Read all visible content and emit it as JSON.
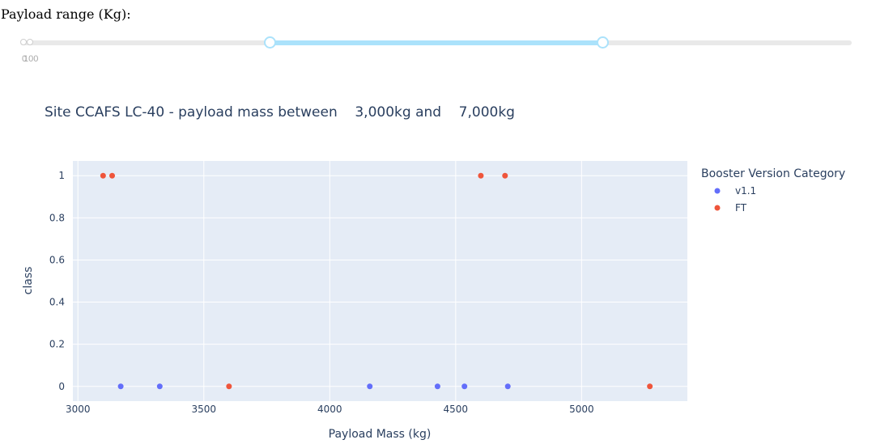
{
  "slider": {
    "label": "Payload range (Kg):",
    "min": 0,
    "max": 10000,
    "value": [
      3000,
      7000
    ],
    "marks": [
      "0",
      "100"
    ]
  },
  "colors": {
    "v1.1": "#636efa",
    "FT": "#ef553b",
    "plot_bg": "#e5ecf6",
    "grid": "#ffffff",
    "slider_fill": "#abe2fb"
  },
  "chart_data": {
    "type": "scatter",
    "title": "Site CCAFS LC-40 - payload mass between    3,000kg and    7,000kg",
    "xlabel": "Payload Mass (kg)",
    "ylabel": "class",
    "xlim": [
      2980,
      5420
    ],
    "ylim": [
      -0.07,
      1.07
    ],
    "xticks": [
      "3000",
      "3500",
      "4000",
      "4500",
      "5000"
    ],
    "xtick_values": [
      3000,
      3500,
      4000,
      4500,
      5000
    ],
    "yticks": [
      "0",
      "0.2",
      "0.4",
      "0.6",
      "0.8",
      "1"
    ],
    "ytick_values": [
      0,
      0.2,
      0.4,
      0.6,
      0.8,
      1
    ],
    "grid": true,
    "legend": {
      "title": "Booster Version Category",
      "placement": "right"
    },
    "series": [
      {
        "name": "v1.1",
        "color": "#636efa",
        "points": [
          {
            "x": 3170,
            "y": 0
          },
          {
            "x": 3325,
            "y": 0
          },
          {
            "x": 4159,
            "y": 0
          },
          {
            "x": 4428,
            "y": 0
          },
          {
            "x": 4535,
            "y": 0
          },
          {
            "x": 4707,
            "y": 0
          }
        ]
      },
      {
        "name": "FT",
        "color": "#ef553b",
        "points": [
          {
            "x": 3100,
            "y": 1
          },
          {
            "x": 3136,
            "y": 1
          },
          {
            "x": 4600,
            "y": 1
          },
          {
            "x": 4696,
            "y": 1
          },
          {
            "x": 3600,
            "y": 0
          },
          {
            "x": 5271,
            "y": 0
          }
        ]
      }
    ]
  }
}
